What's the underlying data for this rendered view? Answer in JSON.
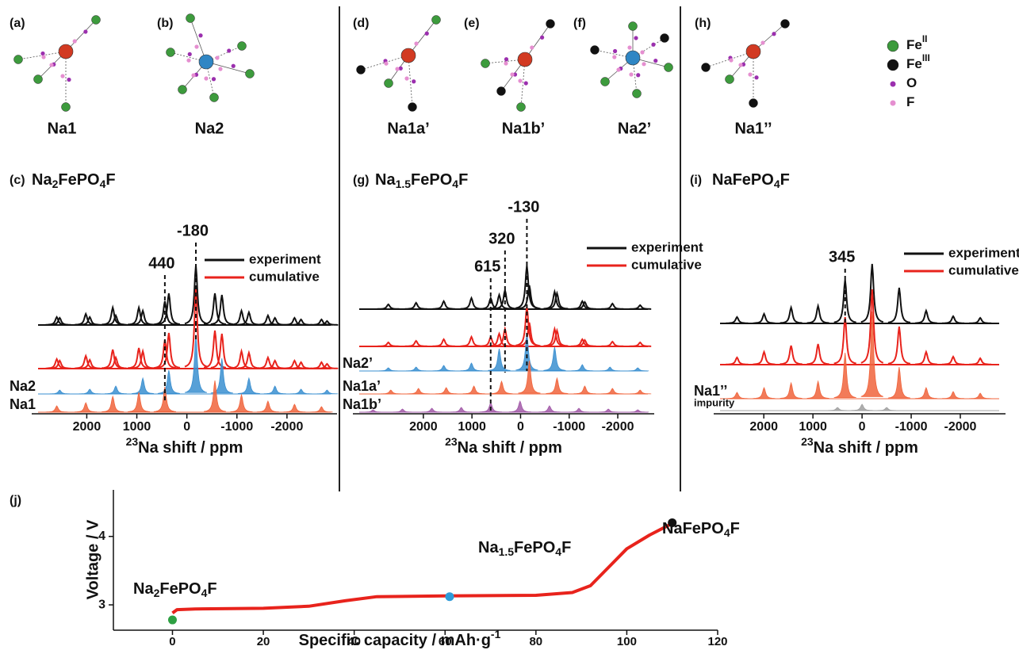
{
  "structures": {
    "panels": [
      "(a)",
      "(b)",
      "(d)",
      "(e)",
      "(f)",
      "(h)"
    ],
    "sites": [
      "Na1",
      "Na2",
      "Na1a’",
      "Na1b’",
      "Na2’",
      "Na1’’"
    ]
  },
  "legend": [
    {
      "parts": [
        "Fe",
        "II"
      ],
      "color": "#3d9b3d"
    },
    {
      "parts": [
        "Fe",
        "III"
      ],
      "color": "#111111"
    },
    {
      "parts": [
        "O"
      ],
      "color": "#9b2fae"
    },
    {
      "parts": [
        "F"
      ],
      "color": "#e58fd0"
    }
  ],
  "chart_data": [
    {
      "type": "nmr",
      "label": "(c)",
      "title_parts": [
        "Na",
        "2",
        "FePO",
        "4",
        "F"
      ],
      "title_color": "#2ea043",
      "xlabel_parts": [
        "23",
        "Na shift / ppm"
      ],
      "xlim": [
        3100,
        -3000
      ],
      "xticks": [
        2000,
        1000,
        0,
        -1000,
        -2000
      ],
      "annotations": [
        -180,
        440
      ],
      "series": [
        {
          "name": "experiment",
          "color": "#111111",
          "filled": false,
          "x": [
            2600,
            2540,
            2020,
            1940,
            1480,
            1420,
            960,
            880,
            440,
            360,
            -180,
            -560,
            -700,
            -1090,
            -1240,
            -1620,
            -1760,
            -2150,
            -2280,
            -2690,
            -2800
          ],
          "values": [
            10,
            9,
            14,
            10,
            22,
            12,
            22,
            18,
            30,
            40,
            75,
            40,
            38,
            18,
            16,
            12,
            9,
            9,
            7,
            7,
            5
          ]
        },
        {
          "name": "cumulative",
          "color": "#e8231c",
          "filled": false,
          "x": [
            2600,
            2540,
            2020,
            1940,
            1480,
            1420,
            960,
            880,
            440,
            360,
            -180,
            -560,
            -700,
            -1090,
            -1240,
            -1620,
            -1760,
            -2150,
            -2280,
            -2690,
            -2800
          ],
          "values": [
            12,
            10,
            16,
            11,
            24,
            14,
            26,
            22,
            36,
            45,
            100,
            48,
            44,
            22,
            20,
            14,
            10,
            10,
            8,
            8,
            6
          ]
        },
        {
          "name": "Na2",
          "color": "#3a8fd0",
          "filled": true,
          "x": [
            2540,
            1940,
            1420,
            880,
            360,
            -180,
            -700,
            -1240,
            -1760,
            -2280,
            -2800
          ],
          "values": [
            5,
            6,
            10,
            20,
            30,
            75,
            45,
            20,
            10,
            6,
            5
          ]
        },
        {
          "name": "Na1",
          "color": "#f0643c",
          "filled": true,
          "x": [
            2600,
            2020,
            1480,
            960,
            440,
            -560,
            -1090,
            -1620,
            -2150,
            -2690
          ],
          "values": [
            8,
            12,
            20,
            25,
            32,
            40,
            22,
            14,
            10,
            7
          ]
        }
      ]
    },
    {
      "type": "nmr",
      "label": "(g)",
      "title_parts": [
        "Na",
        "1.5",
        "FePO",
        "4",
        "F"
      ],
      "title_color": "#2f9bd8",
      "xlabel_parts": [
        "23",
        "Na shift / ppm"
      ],
      "xlim": [
        3450,
        -2750
      ],
      "xticks": [
        2000,
        1000,
        0,
        -1000,
        -2000
      ],
      "annotations": [
        -130,
        320,
        615
      ],
      "series": [
        {
          "name": "experiment",
          "color": "#111111",
          "filled": false,
          "x": [
            2720,
            2150,
            1580,
            1010,
            615,
            440,
            320,
            -130,
            -180,
            -700,
            -750,
            -1270,
            -1320,
            -1890,
            -2460
          ],
          "values": [
            6,
            8,
            10,
            14,
            14,
            18,
            24,
            55,
            30,
            22,
            20,
            10,
            9,
            7,
            5
          ]
        },
        {
          "name": "cumulative",
          "color": "#e8231c",
          "filled": false,
          "x": [
            2720,
            2150,
            1580,
            1010,
            615,
            440,
            320,
            -130,
            -180,
            -700,
            -750,
            -1270,
            -1320,
            -1890,
            -2460
          ],
          "values": [
            5,
            7,
            9,
            12,
            12,
            16,
            22,
            50,
            30,
            22,
            20,
            9,
            8,
            6,
            5
          ]
        },
        {
          "name": "Na2’",
          "color": "#3a8fd0",
          "filled": true,
          "x": [
            2720,
            2150,
            1580,
            1010,
            440,
            -130,
            -700,
            -1270,
            -1840,
            -2410
          ],
          "values": [
            4,
            5,
            7,
            10,
            28,
            48,
            30,
            8,
            5,
            4
          ]
        },
        {
          "name": "Na1a’",
          "color": "#f0643c",
          "filled": true,
          "x": [
            2670,
            2100,
            1530,
            960,
            390,
            -180,
            -750,
            -1320,
            -1890,
            -2460
          ],
          "values": [
            5,
            7,
            8,
            10,
            16,
            42,
            20,
            10,
            7,
            5
          ]
        },
        {
          "name": "Na1b’",
          "color": "#a25aa8",
          "filled": true,
          "x": [
            3035,
            2430,
            1825,
            1220,
            615,
            10,
            -595,
            -1200,
            -1805,
            -2410
          ],
          "values": [
            3,
            4,
            5,
            6,
            12,
            14,
            8,
            5,
            4,
            3
          ]
        }
      ]
    },
    {
      "type": "nmr",
      "label": "(i)",
      "title_parts": [
        "NaFePO",
        "4",
        "F"
      ],
      "title_color": "#111111",
      "xlabel_parts": [
        "23",
        "Na shift / ppm"
      ],
      "xlim": [
        3020,
        -2920
      ],
      "xticks": [
        2000,
        1000,
        0,
        -1000,
        -2000
      ],
      "annotations": [
        345
      ],
      "series": [
        {
          "name": "experiment",
          "color": "#111111",
          "filled": false,
          "x": [
            2545,
            1995,
            1445,
            895,
            345,
            -205,
            -755,
            -1305,
            -1855,
            -2405
          ],
          "values": [
            8,
            12,
            20,
            22,
            55,
            75,
            45,
            16,
            9,
            7
          ]
        },
        {
          "name": "cumulative",
          "color": "#e8231c",
          "filled": false,
          "x": [
            2545,
            1995,
            1445,
            895,
            345,
            -205,
            -755,
            -1305,
            -1855,
            -2405
          ],
          "values": [
            9,
            16,
            24,
            26,
            60,
            95,
            48,
            16,
            10,
            8
          ]
        },
        {
          "name": "Na1’’",
          "color": "#f0643c",
          "filled": true,
          "x": [
            2545,
            1995,
            1445,
            895,
            345,
            -205,
            -755,
            -1305,
            -1855,
            -2405
          ],
          "values": [
            8,
            14,
            20,
            22,
            58,
            110,
            40,
            14,
            9,
            7
          ]
        },
        {
          "name": "impurity",
          "color": "#a0a0a0",
          "filled": true,
          "x": [
            500,
            0,
            -500
          ],
          "values": [
            4,
            8,
            4
          ]
        }
      ]
    },
    {
      "type": "line",
      "label": "(j)",
      "color": "#e8231c",
      "xlabel_parts": [
        "Specific capacity / mAh·g",
        "-1"
      ],
      "ylabel": "Voltage / V",
      "xlim": [
        -13,
        120
      ],
      "ylim": [
        2.63,
        4.68
      ],
      "xticks": [
        0,
        20,
        40,
        60,
        80,
        100,
        120
      ],
      "yticks": [
        3,
        4
      ],
      "x": [
        0,
        1,
        5,
        20,
        30,
        38,
        45,
        60,
        80,
        88,
        92,
        96,
        100,
        105,
        110
      ],
      "values": [
        2.88,
        2.93,
        2.94,
        2.95,
        2.98,
        3.06,
        3.12,
        3.13,
        3.14,
        3.18,
        3.28,
        3.55,
        3.82,
        4.02,
        4.19
      ],
      "points": [
        {
          "x": 0,
          "y": 2.78,
          "color": "#2ea043",
          "parts": [
            "Na",
            "2",
            "FePO",
            "4",
            "F"
          ]
        },
        {
          "x": 61,
          "y": 3.12,
          "color": "#2f9bd8",
          "parts": [
            "Na",
            "1.5",
            "FePO",
            "4",
            "F"
          ]
        },
        {
          "x": 110,
          "y": 4.2,
          "color": "#111111",
          "parts": [
            "NaFePO",
            "4",
            "F"
          ]
        }
      ]
    }
  ]
}
